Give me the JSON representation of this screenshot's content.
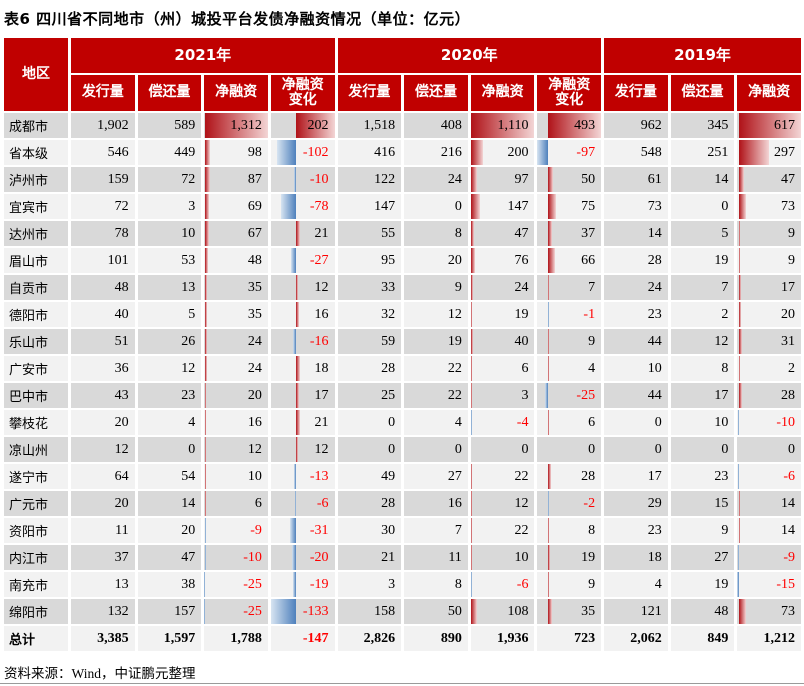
{
  "title": "表6 四川省不同地市（州）城投平台发债净融资情况（单位：亿元）",
  "footer": {
    "source_label": "资料来源：Wind，中证鹏元整理"
  },
  "colors": {
    "header_red": "#C00000",
    "row_gray": "#D9D9D9",
    "row_light": "#F2F2F2",
    "negative_text": "#FF0000",
    "bar_red": "#B01218",
    "bar_red_light": "#F3D5D5",
    "bar_blue": "#4E80BC",
    "bar_blue_light": "#D7E4F1"
  },
  "chart_data": {
    "type": "table",
    "region_header": "地区",
    "year_groups": [
      {
        "label": "2021年",
        "columns": [
          "发行量",
          "偿还量",
          "净融资",
          "净融资\n变化"
        ]
      },
      {
        "label": "2020年",
        "columns": [
          "发行量",
          "偿还量",
          "净融资",
          "净融资\n变化"
        ]
      },
      {
        "label": "2019年",
        "columns": [
          "发行量",
          "偿还量",
          "净融资"
        ]
      }
    ],
    "bar_columns": [
      2,
      3,
      6,
      7,
      10
    ],
    "rows": [
      {
        "region": "成都市",
        "values": [
          1902,
          589,
          1312,
          202,
          1518,
          408,
          1110,
          493,
          962,
          345,
          617
        ]
      },
      {
        "region": "省本级",
        "values": [
          546,
          449,
          98,
          -102,
          416,
          216,
          200,
          -97,
          548,
          251,
          297
        ]
      },
      {
        "region": "泸州市",
        "values": [
          159,
          72,
          87,
          -10,
          122,
          24,
          97,
          50,
          61,
          14,
          47
        ]
      },
      {
        "region": "宜宾市",
        "values": [
          72,
          3,
          69,
          -78,
          147,
          0,
          147,
          75,
          73,
          0,
          73
        ]
      },
      {
        "region": "达州市",
        "values": [
          78,
          10,
          67,
          21,
          55,
          8,
          47,
          37,
          14,
          5,
          9
        ]
      },
      {
        "region": "眉山市",
        "values": [
          101,
          53,
          48,
          -27,
          95,
          20,
          76,
          66,
          28,
          19,
          9
        ]
      },
      {
        "region": "自贡市",
        "values": [
          48,
          13,
          35,
          12,
          33,
          9,
          24,
          7,
          24,
          7,
          17
        ]
      },
      {
        "region": "德阳市",
        "values": [
          40,
          5,
          35,
          16,
          32,
          12,
          19,
          -1,
          23,
          2,
          20
        ]
      },
      {
        "region": "乐山市",
        "values": [
          51,
          26,
          24,
          -16,
          59,
          19,
          40,
          9,
          44,
          12,
          31
        ]
      },
      {
        "region": "广安市",
        "values": [
          36,
          12,
          24,
          18,
          28,
          22,
          6,
          4,
          10,
          8,
          2
        ]
      },
      {
        "region": "巴中市",
        "values": [
          43,
          23,
          20,
          17,
          25,
          22,
          3,
          -25,
          44,
          17,
          28
        ]
      },
      {
        "region": "攀枝花",
        "values": [
          20,
          4,
          16,
          21,
          0,
          4,
          -4,
          6,
          0,
          10,
          -10
        ]
      },
      {
        "region": "凉山州",
        "values": [
          12,
          0,
          12,
          12,
          0,
          0,
          0,
          0,
          0,
          0,
          0
        ]
      },
      {
        "region": "遂宁市",
        "values": [
          64,
          54,
          10,
          -13,
          49,
          27,
          22,
          28,
          17,
          23,
          -6
        ]
      },
      {
        "region": "广元市",
        "values": [
          20,
          14,
          6,
          -6,
          28,
          16,
          12,
          -2,
          29,
          15,
          14
        ]
      },
      {
        "region": "资阳市",
        "values": [
          11,
          20,
          -9,
          -31,
          30,
          7,
          22,
          8,
          23,
          9,
          14
        ]
      },
      {
        "region": "内江市",
        "values": [
          37,
          47,
          -10,
          -20,
          21,
          11,
          10,
          19,
          18,
          27,
          -9
        ]
      },
      {
        "region": "南充市",
        "values": [
          13,
          38,
          -25,
          -19,
          3,
          8,
          -6,
          9,
          4,
          19,
          -15
        ]
      },
      {
        "region": "绵阳市",
        "values": [
          132,
          157,
          -25,
          -133,
          158,
          50,
          108,
          35,
          121,
          48,
          73
        ]
      }
    ],
    "total_row": {
      "region": "总计",
      "values": [
        3385,
        1597,
        1788,
        -147,
        2826,
        890,
        1936,
        723,
        2062,
        849,
        1212
      ]
    }
  }
}
